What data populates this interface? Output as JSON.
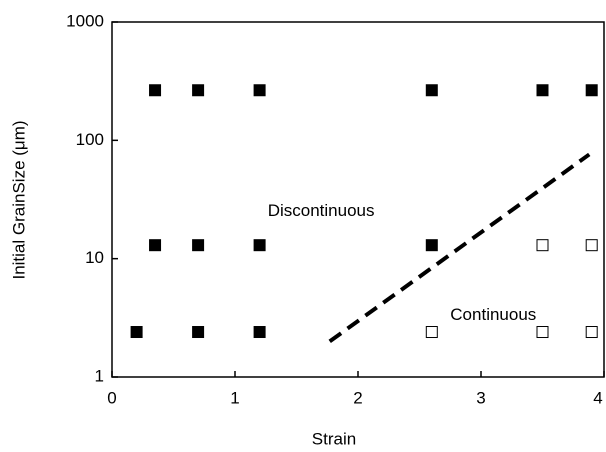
{
  "chart_data": {
    "type": "scatter",
    "xlabel": "Strain",
    "ylabel": "Initial GrainSize (μm)",
    "xlim": [
      0,
      4
    ],
    "xticks": [
      0,
      1,
      2,
      3,
      4
    ],
    "ylim": [
      1,
      1000
    ],
    "yticks": [
      1,
      10,
      100,
      1000
    ],
    "ylog": true,
    "annotations": [
      {
        "text": "Discontinuous",
        "x": 1.7,
        "y": 25
      },
      {
        "text": "Continuous",
        "x": 3.1,
        "y": 3.3
      }
    ],
    "series": [
      {
        "marker": "filled",
        "color": "#000000",
        "x": [
          0.35,
          0.7,
          1.2,
          2.6,
          3.5,
          3.9,
          0.35,
          0.7,
          1.2,
          2.6,
          0.2,
          0.7,
          1.2
        ],
        "y": [
          265,
          265,
          265,
          265,
          265,
          265,
          13,
          13,
          13,
          13,
          2.4,
          2.4,
          2.4
        ]
      },
      {
        "marker": "open",
        "color": "#000000",
        "x": [
          3.5,
          3.9,
          2.6,
          3.5,
          3.9
        ],
        "y": [
          13,
          13,
          2.4,
          2.4,
          2.4
        ]
      },
      {
        "marker": "dashed-line",
        "color": "#000000",
        "x": [
          1.77,
          3.88
        ],
        "y": [
          2,
          76
        ]
      }
    ]
  }
}
